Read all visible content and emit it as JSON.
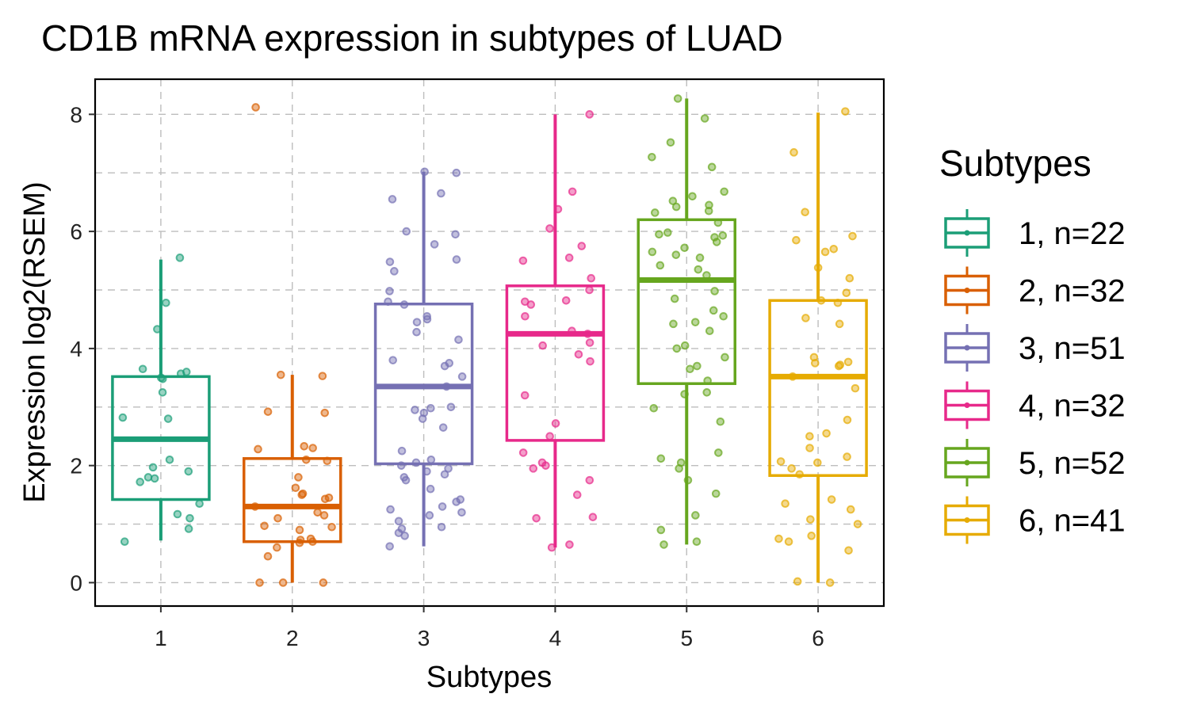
{
  "chart_data": {
    "type": "box",
    "title": "CD1B mRNA expression in subtypes of LUAD",
    "xlabel": "Subtypes",
    "ylabel": "Expression log2(RSEM)",
    "ylim": [
      -0.4,
      8.6
    ],
    "y_ticks": [
      0,
      2,
      4,
      6,
      8
    ],
    "grid": true,
    "legend": {
      "title": "Subtypes",
      "position": "right"
    },
    "categories": [
      "1",
      "2",
      "3",
      "4",
      "5",
      "6"
    ],
    "series": [
      {
        "name": "1, n=22",
        "color": "#1b9e77",
        "box": {
          "whisker_low": 0.72,
          "q1": 1.42,
          "median": 2.45,
          "q3": 3.52,
          "whisker_high": 5.52
        },
        "points": [
          5.55,
          4.78,
          4.33,
          3.65,
          3.6,
          3.57,
          3.5,
          3.48,
          3.25,
          2.82,
          2.8,
          2.1,
          1.97,
          1.9,
          1.8,
          1.78,
          1.72,
          1.35,
          1.17,
          1.1,
          0.92,
          0.7
        ]
      },
      {
        "name": "2, n=32",
        "color": "#d95f02",
        "box": {
          "whisker_low": 0.0,
          "q1": 0.7,
          "median": 1.3,
          "q3": 2.12,
          "whisker_high": 3.55
        },
        "points": [
          8.12,
          3.55,
          3.53,
          2.92,
          2.9,
          2.33,
          2.3,
          2.28,
          2.1,
          2.08,
          1.8,
          1.62,
          1.52,
          1.5,
          1.45,
          1.43,
          1.3,
          1.2,
          1.15,
          1.1,
          0.97,
          0.95,
          0.9,
          0.75,
          0.73,
          0.7,
          0.68,
          0.6,
          0.45,
          0.0,
          0.0,
          0.0
        ]
      },
      {
        "name": "3, n=51",
        "color": "#7570b3",
        "box": {
          "whisker_low": 0.62,
          "q1": 2.03,
          "median": 3.35,
          "q3": 4.76,
          "whisker_high": 7.02
        },
        "points": [
          7.02,
          7.0,
          6.65,
          6.55,
          6.0,
          5.95,
          5.78,
          5.52,
          5.48,
          5.32,
          4.98,
          4.8,
          4.75,
          4.55,
          4.5,
          4.45,
          4.28,
          4.15,
          3.8,
          3.75,
          3.7,
          3.52,
          3.35,
          3.0,
          2.98,
          2.95,
          2.9,
          2.8,
          2.65,
          2.25,
          2.1,
          2.05,
          2.0,
          1.95,
          1.9,
          1.85,
          1.8,
          1.75,
          1.6,
          1.42,
          1.38,
          1.3,
          1.25,
          1.2,
          1.15,
          1.05,
          0.95,
          0.92,
          0.85,
          0.8,
          0.62
        ]
      },
      {
        "name": "4, n=32",
        "color": "#e7298a",
        "box": {
          "whisker_low": 0.6,
          "q1": 2.43,
          "median": 4.25,
          "q3": 5.07,
          "whisker_high": 8.0
        },
        "points": [
          8.0,
          6.68,
          6.38,
          6.05,
          5.75,
          5.55,
          5.5,
          5.2,
          5.0,
          4.82,
          4.8,
          4.75,
          4.55,
          4.3,
          4.25,
          4.1,
          4.05,
          3.9,
          3.78,
          3.2,
          2.72,
          2.5,
          2.22,
          2.05,
          2.0,
          1.95,
          1.75,
          1.5,
          1.12,
          1.1,
          0.65,
          0.6
        ]
      },
      {
        "name": "5, n=52",
        "color": "#66a61e",
        "box": {
          "whisker_low": 0.65,
          "q1": 3.4,
          "median": 5.17,
          "q3": 6.2,
          "whisker_high": 8.27
        },
        "points": [
          8.27,
          7.93,
          7.52,
          7.27,
          7.1,
          6.68,
          6.6,
          6.52,
          6.45,
          6.42,
          6.35,
          6.32,
          6.15,
          5.98,
          5.95,
          5.93,
          5.9,
          5.82,
          5.72,
          5.65,
          5.6,
          5.55,
          5.42,
          5.35,
          5.25,
          4.98,
          4.85,
          4.65,
          4.55,
          4.45,
          4.42,
          4.3,
          4.05,
          4.0,
          3.85,
          3.7,
          3.65,
          3.45,
          3.25,
          3.22,
          2.98,
          2.75,
          2.22,
          2.12,
          2.05,
          1.95,
          1.75,
          1.52,
          1.15,
          0.7,
          0.65,
          0.9
        ]
      },
      {
        "name": "6, n=41",
        "color": "#e6ab02",
        "box": {
          "whisker_low": 0.0,
          "q1": 1.83,
          "median": 3.52,
          "q3": 4.82,
          "whisker_high": 8.03
        },
        "points": [
          8.05,
          7.35,
          6.33,
          5.92,
          5.85,
          5.7,
          5.65,
          5.38,
          5.2,
          4.95,
          4.82,
          4.78,
          4.52,
          4.42,
          3.85,
          3.77,
          3.75,
          3.72,
          3.7,
          3.52,
          3.32,
          2.78,
          2.55,
          2.5,
          2.3,
          2.15,
          2.05,
          2.07,
          1.95,
          1.85,
          1.42,
          1.35,
          1.25,
          1.08,
          1.0,
          0.8,
          0.75,
          0.7,
          0.55,
          0.0,
          0.02
        ]
      }
    ]
  }
}
